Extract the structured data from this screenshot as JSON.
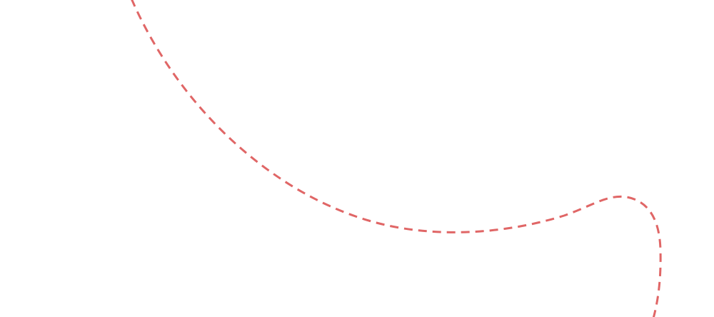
{
  "decoration": {
    "line_style": "dashed",
    "stroke_color": "#e06666",
    "background_color": "#ffffff"
  }
}
